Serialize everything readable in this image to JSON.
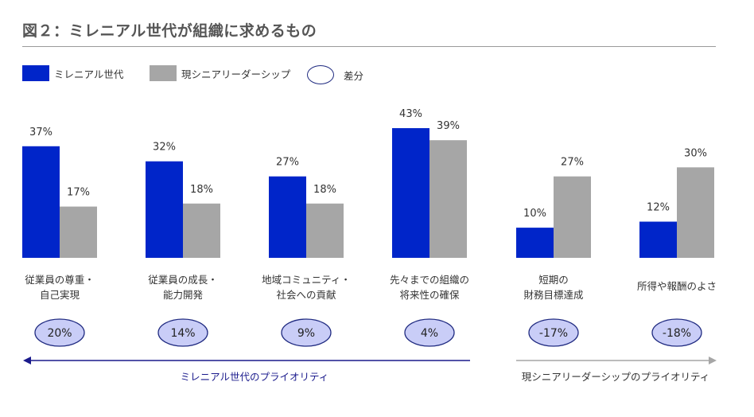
{
  "title": "図２：ミレニアル世代が組織に求めるもの",
  "legend": {
    "millennial": "ミレニアル世代",
    "leader": "現シニアリーダーシップ",
    "diff": "差分"
  },
  "colors": {
    "millennial": "#0025c9",
    "leader": "#a6a6a6",
    "diff_fill": "#c9cdf7",
    "diff_border": "#1f2a80",
    "millennial_arrow": "#1a1a8c",
    "leader_arrow": "#a6a6a6"
  },
  "priority_labels": {
    "millennial": "ミレニアル世代のプライオリティ",
    "leader": "現シニアリーダーシップのプライオリティ"
  },
  "chart_data": {
    "type": "bar",
    "categories": [
      [
        "従業員の尊重・",
        "自己実現"
      ],
      [
        "従業員の成長・",
        "能力開発"
      ],
      [
        "地域コミュニティ・",
        "社会への貢献"
      ],
      [
        "先々までの組織の",
        "将来性の確保"
      ],
      [
        "短期の",
        "財務目標達成"
      ],
      [
        "所得や報酬のよさ"
      ]
    ],
    "series": [
      {
        "name": "ミレニアル世代",
        "values": [
          37,
          32,
          27,
          43,
          10,
          12
        ],
        "labels": [
          "37%",
          "32%",
          "27%",
          "43%",
          "10%",
          "12%"
        ]
      },
      {
        "name": "現シニアリーダーシップ",
        "values": [
          17,
          18,
          18,
          39,
          27,
          30
        ],
        "labels": [
          "17%",
          "18%",
          "18%",
          "39%",
          "27%",
          "30%"
        ]
      }
    ],
    "differences": [
      "20%",
      "14%",
      "9%",
      "4%",
      "-17%",
      "-18%"
    ],
    "ylim": [
      0,
      45
    ],
    "grid": false,
    "legend_position": "top-left"
  }
}
